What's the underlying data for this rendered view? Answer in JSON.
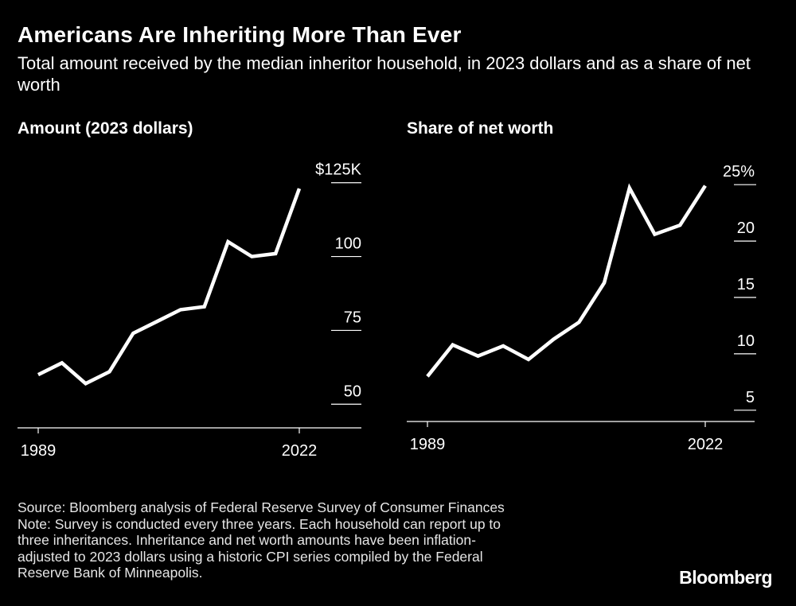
{
  "title": "Americans Are Inheriting More Than Ever",
  "subtitle": "Total amount received by the median inheritor household, in 2023 dollars and as a share of net worth",
  "footer": {
    "source": "Source: Bloomberg analysis of Federal Reserve Survey of Consumer Finances",
    "note_lines": [
      "Note: Survey is conducted every three years. Each household can report up to",
      "three inheritances. Inheritance and net worth amounts have been inflation-",
      "adjusted to 2023 dollars using a historic CPI series compiled by the Federal",
      "Reserve Bank of Minneapolis."
    ]
  },
  "logo": "Bloomberg",
  "colors": {
    "background": "#000000",
    "line": "#ffffff",
    "axis": "#ffffff"
  },
  "chart_data": [
    {
      "type": "line",
      "title": "Amount (2023 dollars)",
      "x": [
        1989,
        1992,
        1995,
        1998,
        2001,
        2004,
        2007,
        2010,
        2013,
        2016,
        2019,
        2022
      ],
      "x_tick_labels": [
        "1989",
        "2022"
      ],
      "series": [
        {
          "values": [
            60,
            64,
            57,
            61,
            74,
            78,
            82,
            83,
            105,
            100,
            101,
            123
          ]
        }
      ],
      "y_ticks": [
        50,
        75,
        100,
        125
      ],
      "y_tick_labels": [
        "50",
        "75",
        "100",
        "$125K"
      ],
      "ylim": [
        42,
        126
      ],
      "grid": false,
      "y_axis_side": "right"
    },
    {
      "type": "line",
      "title": "Share of net worth",
      "x": [
        1989,
        1992,
        1995,
        1998,
        2001,
        2004,
        2007,
        2010,
        2013,
        2016,
        2019,
        2022
      ],
      "x_tick_labels": [
        "1989",
        "2022"
      ],
      "series": [
        {
          "values": [
            8,
            10.8,
            9.8,
            10.7,
            9.5,
            11.3,
            12.8,
            16.3,
            24.7,
            20.6,
            21.4,
            24.9
          ]
        }
      ],
      "y_ticks": [
        5,
        10,
        15,
        20,
        25
      ],
      "y_tick_labels": [
        "5",
        "10",
        "15",
        "20",
        "25%"
      ],
      "ylim": [
        4,
        26
      ],
      "grid": false,
      "y_axis_side": "right"
    }
  ]
}
